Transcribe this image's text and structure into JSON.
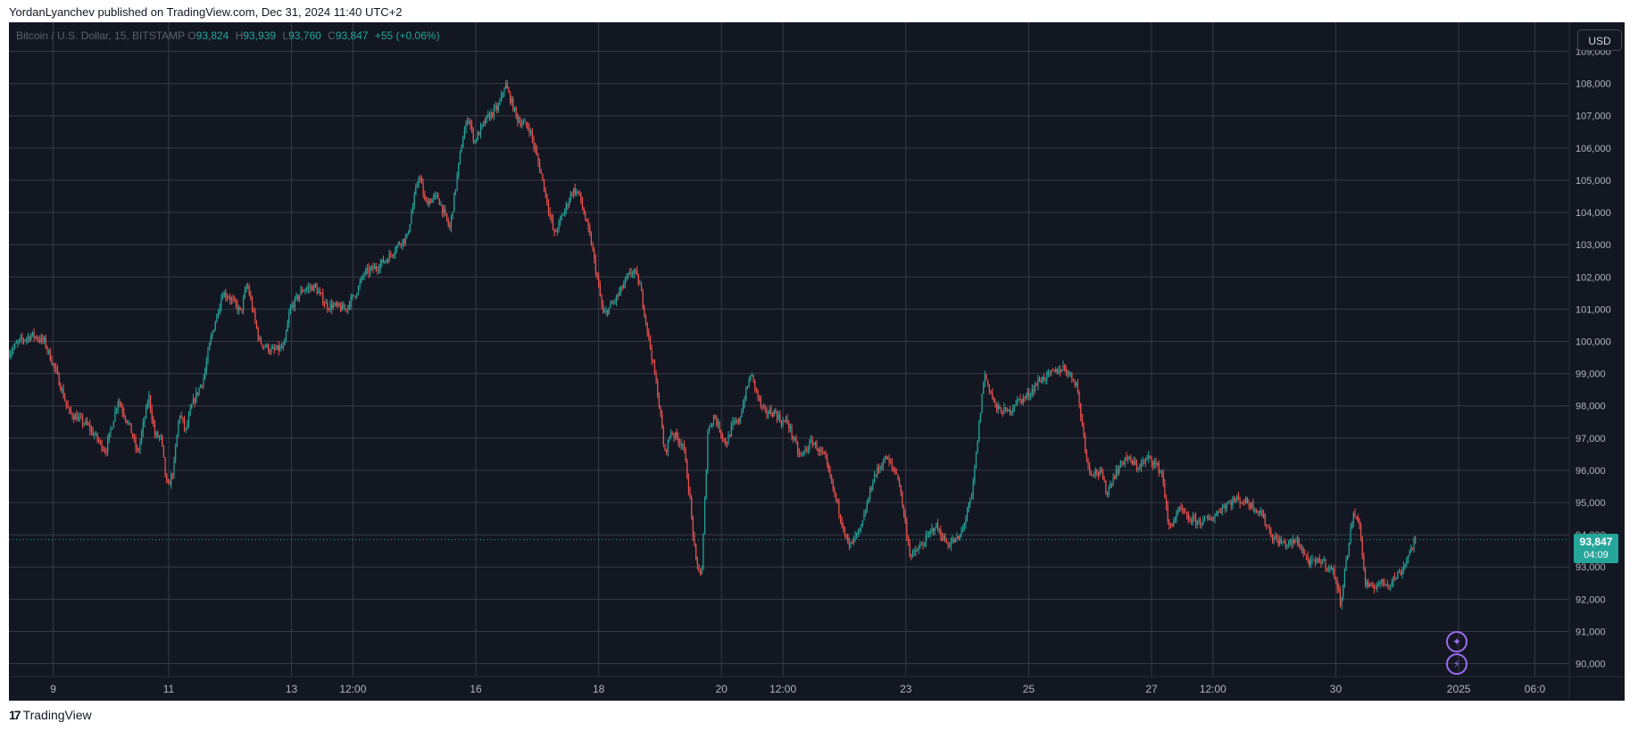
{
  "publisher_line": "YordanLyanchev published on TradingView.com, Dec 31, 2024 11:40 UTC+2",
  "footer_brand": "TradingView",
  "legend": {
    "symbol": "Bitcoin / U.S. Dollar, 15, BITSTAMP",
    "o_label": "O",
    "o": "93,824",
    "h_label": "H",
    "h": "93,939",
    "l_label": "L",
    "l": "93,760",
    "c_label": "C",
    "c": "93,847",
    "change": "+55 (+0.06%)"
  },
  "currency_button": "USD",
  "price_tag": {
    "price": "93,847",
    "countdown": "04:09"
  },
  "icons": {
    "ai": "sparkle-icon",
    "bolt": "lightning-icon"
  },
  "colors": {
    "background": "#131722",
    "up": "#26a69a",
    "down": "#ef5350",
    "grid": "#363a45",
    "axis_text": "#b2b5be"
  },
  "chart_data": {
    "type": "line",
    "title": "",
    "xlabel": "",
    "ylabel": "",
    "ylim": [
      89600,
      109900
    ],
    "last_price": 93847,
    "y_ticks": [
      90000,
      91000,
      92000,
      93000,
      94000,
      95000,
      96000,
      97000,
      98000,
      99000,
      100000,
      101000,
      102000,
      103000,
      104000,
      105000,
      106000,
      107000,
      108000,
      109000
    ],
    "x_ticks": [
      {
        "label": "9",
        "t": 0.06
      },
      {
        "label": "11",
        "t": 1.0
      },
      {
        "label": "13",
        "t": 2.0
      },
      {
        "label": "12:00",
        "t": 2.5
      },
      {
        "label": "16",
        "t": 3.5
      },
      {
        "label": "18",
        "t": 4.5
      },
      {
        "label": "20",
        "t": 5.5
      },
      {
        "label": "12:00",
        "t": 6.0
      },
      {
        "label": "23",
        "t": 7.0
      },
      {
        "label": "25",
        "t": 8.0
      },
      {
        "label": "27",
        "t": 9.0
      },
      {
        "label": "12:00",
        "t": 9.5
      },
      {
        "label": "30",
        "t": 10.5
      },
      {
        "label": "2025",
        "t": 11.5
      },
      {
        "label": "06:0",
        "t": 12.12
      }
    ],
    "series": [
      {
        "x": [
          -0.3,
          -0.2,
          -0.1,
          0.0,
          0.1,
          0.2,
          0.35,
          0.5,
          0.6,
          0.7,
          0.76,
          0.85,
          0.9,
          0.95,
          1.0,
          1.05,
          1.1,
          1.15,
          1.2,
          1.3,
          1.35,
          1.45,
          1.5,
          1.6,
          1.65,
          1.75,
          1.85,
          1.95,
          2.0,
          2.1,
          2.2,
          2.3,
          2.35,
          2.45,
          2.55,
          2.6,
          2.7,
          2.8,
          2.9,
          2.95,
          3.05,
          3.1,
          3.2,
          3.3,
          3.4,
          3.45,
          3.5,
          3.6,
          3.7,
          3.75,
          3.85,
          3.95,
          4.05,
          4.15,
          4.25,
          4.3,
          4.35,
          4.45,
          4.55,
          4.65,
          4.75,
          4.8,
          4.85,
          4.95,
          5.0,
          5.05,
          5.1,
          5.2,
          5.25,
          5.3,
          5.35,
          5.4,
          5.45,
          5.55,
          5.6,
          5.65,
          5.75,
          5.85,
          5.95,
          6.0,
          6.05,
          6.15,
          6.25,
          6.35,
          6.45,
          6.55,
          6.65,
          6.75,
          6.85,
          6.95,
          7.05,
          7.15,
          7.25,
          7.35,
          7.45,
          7.55,
          7.65,
          7.75,
          7.85,
          7.9,
          8.0,
          8.1,
          8.2,
          8.3,
          8.4,
          8.5,
          8.6,
          8.65,
          8.7,
          8.8,
          8.9,
          9.0,
          9.1,
          9.15,
          9.25,
          9.3,
          9.4,
          9.5,
          9.6,
          9.7,
          9.8,
          9.9,
          10.0,
          10.1,
          10.2,
          10.3,
          10.4,
          10.5,
          10.55,
          10.65,
          10.7,
          10.75,
          10.8,
          10.85,
          10.95,
          11.05,
          11.15
        ],
        "y": [
          99600,
          100000,
          100200,
          100000,
          99000,
          97800,
          97400,
          96600,
          98200,
          97300,
          96500,
          98300,
          97100,
          97000,
          95400,
          96000,
          97800,
          97200,
          98000,
          98900,
          100000,
          101500,
          101400,
          100900,
          101800,
          100000,
          99700,
          99800,
          101000,
          101600,
          101700,
          101100,
          101100,
          101000,
          101600,
          102100,
          102300,
          102600,
          103100,
          103200,
          105200,
          104300,
          104500,
          103500,
          106200,
          107000,
          106200,
          106900,
          107300,
          108000,
          106900,
          106600,
          105100,
          103300,
          104200,
          104700,
          104600,
          103100,
          100800,
          101300,
          102000,
          102200,
          101700,
          99400,
          98200,
          96500,
          97200,
          96800,
          95300,
          93200,
          92700,
          97200,
          97700,
          96800,
          97400,
          97500,
          99000,
          97800,
          97800,
          97500,
          97500,
          96400,
          96900,
          96400,
          95000,
          93600,
          94200,
          95800,
          96400,
          95800,
          93300,
          93700,
          94300,
          93700,
          93900,
          95200,
          99000,
          97900,
          97800,
          98100,
          98300,
          98800,
          99000,
          99200,
          98700,
          96000,
          95900,
          95300,
          95800,
          96400,
          96100,
          96400,
          95900,
          94200,
          94800,
          94500,
          94400,
          94500,
          94900,
          95100,
          95000,
          94700,
          93900,
          93700,
          93800,
          93100,
          93200,
          92800,
          91900,
          94600,
          94500,
          92500,
          92300,
          92500,
          92500,
          92900,
          93800
        ]
      }
    ]
  }
}
